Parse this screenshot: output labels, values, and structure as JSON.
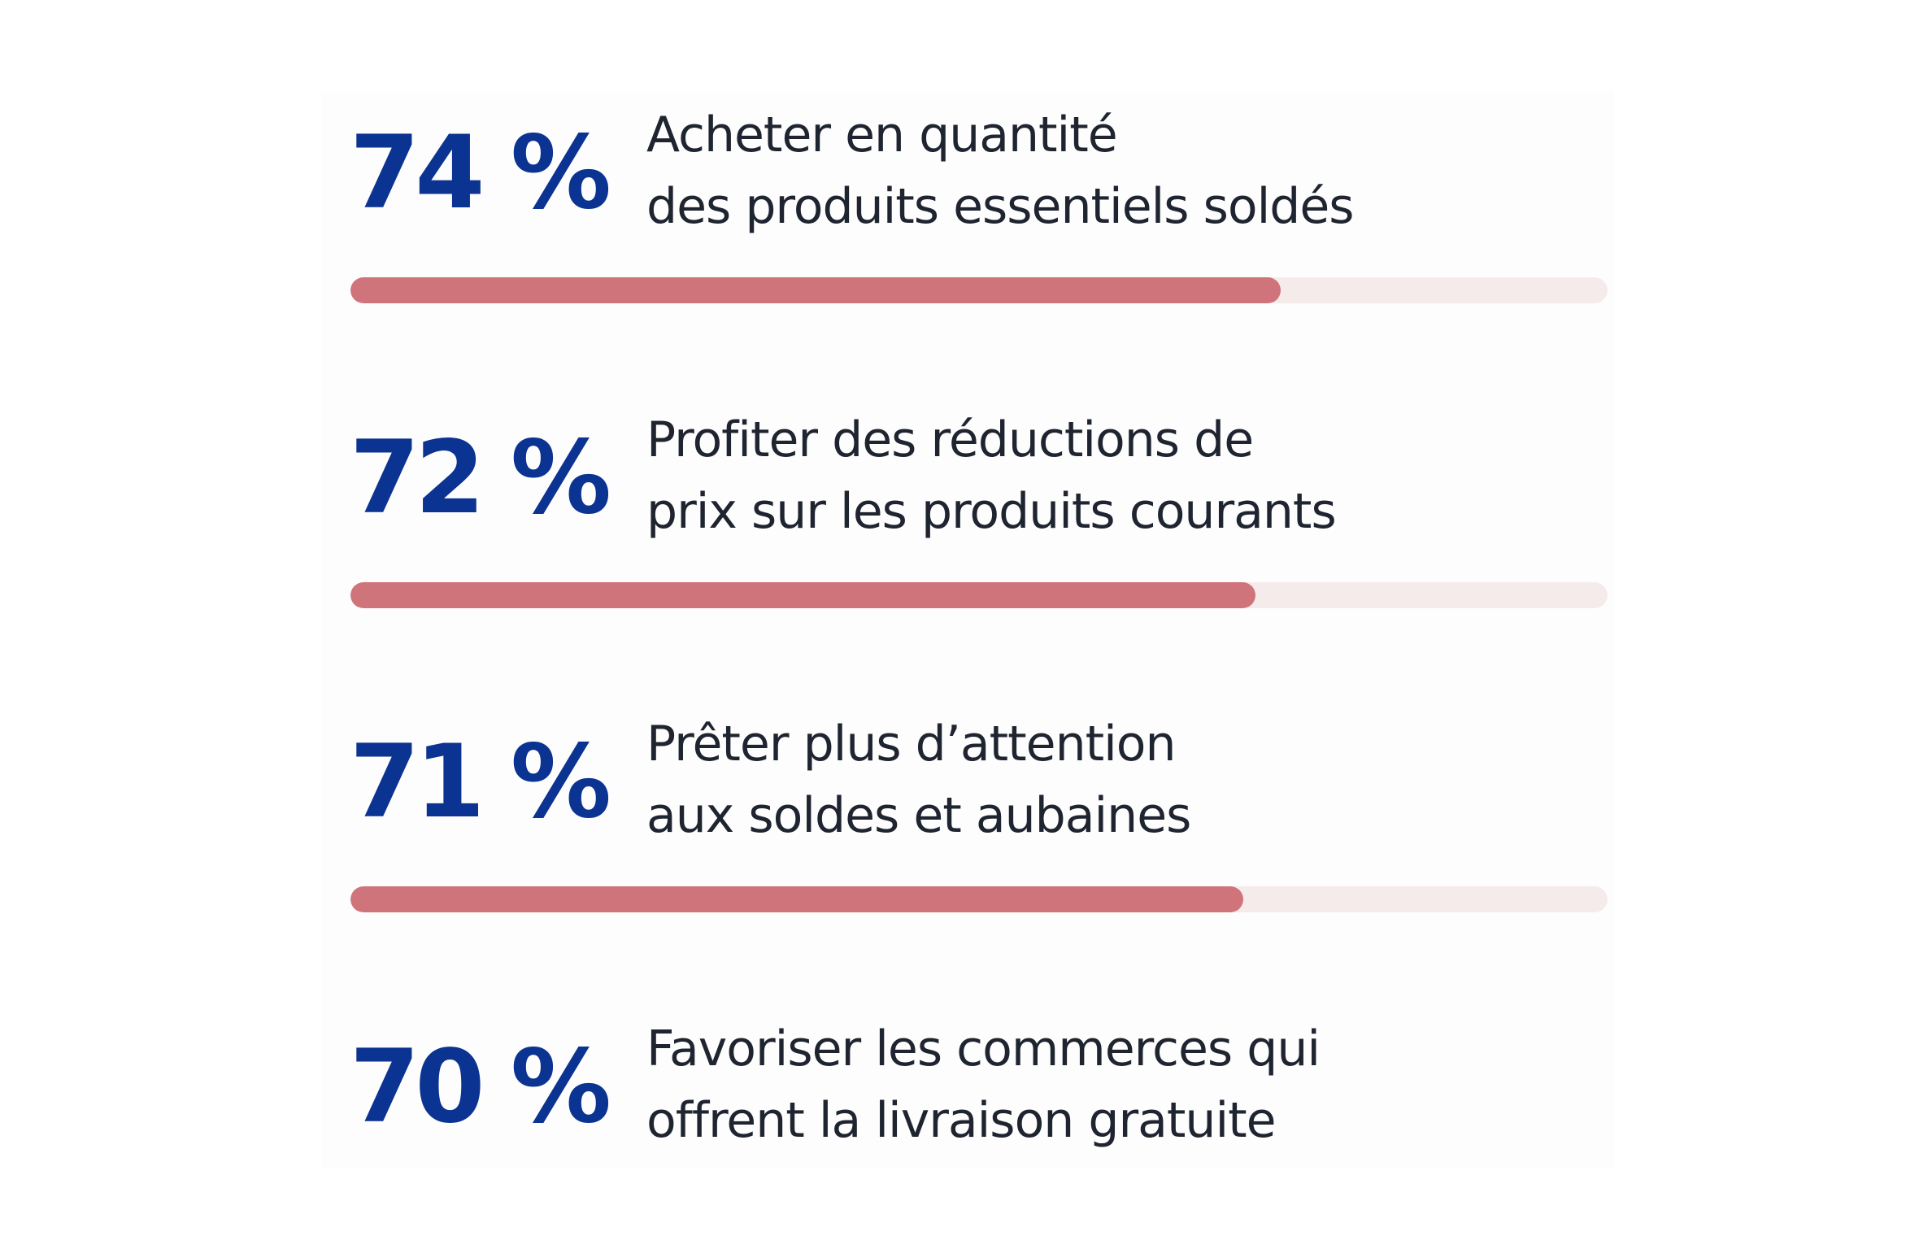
{
  "chart_data": {
    "type": "bar",
    "orientation": "horizontal",
    "value_suffix": " %",
    "colors": {
      "value_text": "#0b3391",
      "label_text": "#1f2530",
      "bar_fill": "#d0747b",
      "bar_track": "#f6ebeb",
      "panel": "#fefdfd"
    },
    "xlim": [
      0,
      100
    ],
    "rows": [
      {
        "value": 74,
        "value_label": "74 %",
        "label_lines": [
          "Acheter en quantité",
          "des produits essentiels soldés"
        ],
        "bar_shown": true
      },
      {
        "value": 72,
        "value_label": "72 %",
        "label_lines": [
          "Profiter des réductions de",
          "prix sur les produits courants"
        ],
        "bar_shown": true
      },
      {
        "value": 71,
        "value_label": "71 %",
        "label_lines": [
          "Prêter plus d’attention",
          "aux soldes et aubaines"
        ],
        "bar_shown": true
      },
      {
        "value": 70,
        "value_label": "70 %",
        "label_lines": [
          "Favoriser les commerces qui",
          "offrent la livraison gratuite"
        ],
        "bar_shown": false
      }
    ]
  }
}
